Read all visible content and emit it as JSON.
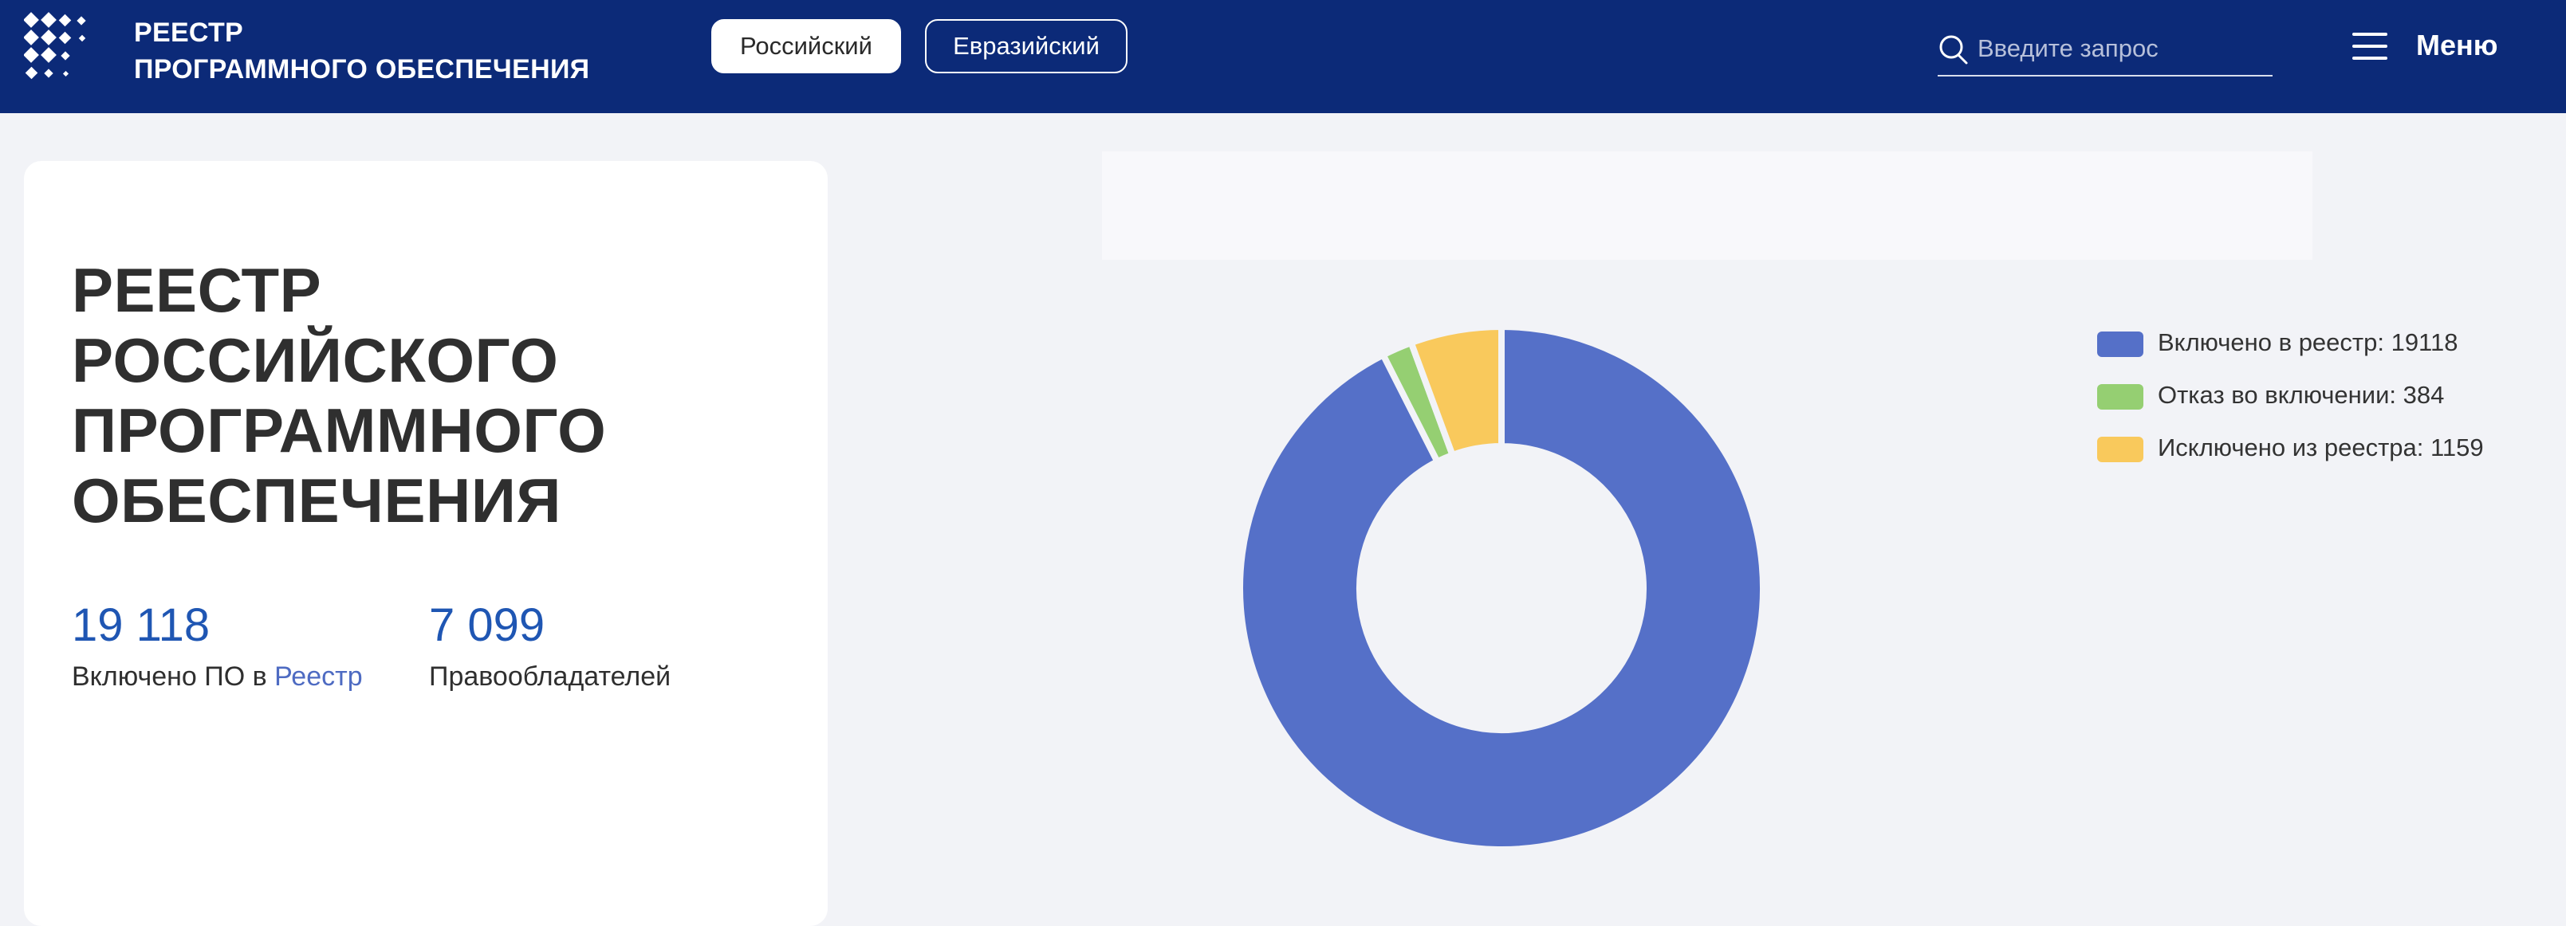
{
  "header": {
    "logo_line1": "РЕЕСТР",
    "logo_line2": "ПРОГРАММНОГО ОБЕСПЕЧЕНИЯ",
    "tabs": [
      {
        "label": "Российский",
        "active": true
      },
      {
        "label": "Евразийский",
        "active": false
      }
    ],
    "search": {
      "placeholder": "Введите запрос",
      "value": ""
    },
    "menu_label": "Меню",
    "background_color": "#0c2a78"
  },
  "hero": {
    "title_lines": [
      "РЕЕСТР",
      "РОССИЙСКОГО",
      "ПРОГРАММНОГО",
      "ОБЕСПЕЧЕНИЯ"
    ],
    "stats": [
      {
        "value": "19 118",
        "label_prefix": "Включено ПО в ",
        "label_link": "Реестр"
      },
      {
        "value": "7 099",
        "label": "Правообладателей"
      }
    ]
  },
  "chart_data": {
    "type": "pie",
    "donut": true,
    "categories": [
      "Включено в реестр",
      "Отказ во включении",
      "Исключено из реестра"
    ],
    "values": [
      19118,
      384,
      1159
    ],
    "colors": [
      "#5570c8",
      "#95cf72",
      "#f9c95c"
    ],
    "legend": [
      "Включено в реестр: 19118",
      "Отказ во включении: 384",
      "Исключено из реестра: 1159"
    ],
    "legend_position": "right"
  }
}
